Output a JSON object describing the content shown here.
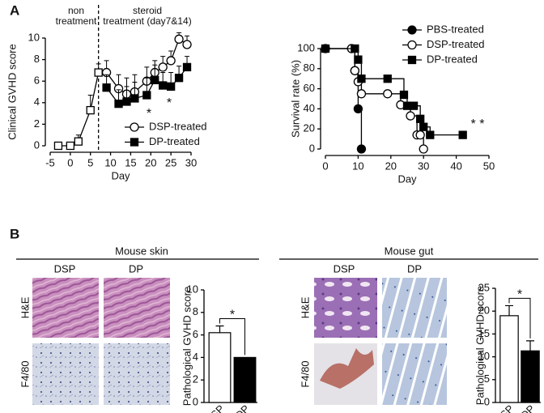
{
  "figure": {
    "panel_a": "A",
    "panel_b": "B"
  },
  "histology": [
    {
      "title": "Mouse skin",
      "columns": [
        "DSP",
        "DP"
      ],
      "rows": [
        "H&E",
        "F4/80"
      ]
    },
    {
      "title": "Mouse gut",
      "columns": [
        "DSP",
        "DP"
      ],
      "rows": [
        "H&E",
        "F4/80"
      ]
    }
  ],
  "chart_data": [
    {
      "type": "line",
      "y_label": "Clinical GVHD score",
      "x_label": "Day",
      "xlim": [
        -5,
        30
      ],
      "xticks": [
        -5,
        0,
        5,
        10,
        15,
        20,
        25,
        30
      ],
      "ylim": [
        0,
        10
      ],
      "yticks": [
        0,
        2,
        4,
        6,
        8,
        10
      ],
      "treatment_start_day": 7,
      "legend": "lower right",
      "annotations": {
        "before": [
          "non",
          "treatment"
        ],
        "after": [
          "steroid",
          "treatment (day7&14)"
        ],
        "stars": [
          "*",
          "*"
        ]
      },
      "series": [
        {
          "marker": "open-square",
          "color": "#000000",
          "x": [
            -3,
            0,
            2,
            5,
            7
          ],
          "values": [
            0,
            0,
            0.4,
            3.3,
            6.8
          ],
          "errors": [
            null,
            null,
            0.6,
            1.4,
            0.8
          ]
        },
        {
          "name": "DSP-treated",
          "marker": "open-circle",
          "color": "#000000",
          "x": [
            9,
            12,
            14,
            16,
            19,
            21,
            23,
            25,
            27,
            29
          ],
          "values": [
            6.8,
            5.3,
            4.8,
            5.0,
            6.0,
            6.8,
            7.3,
            7.9,
            9.9,
            9.4
          ],
          "errors": [
            1.1,
            1.3,
            1.5,
            1.6,
            1.3,
            1.1,
            1.0,
            0.9,
            0.6,
            0.8
          ]
        },
        {
          "name": "DP-treated",
          "marker": "filled-square",
          "color": "#000000",
          "x": [
            9,
            12,
            14,
            16,
            19,
            21,
            23,
            25,
            27,
            29
          ],
          "values": [
            5.4,
            3.9,
            4.1,
            4.4,
            4.7,
            6.1,
            5.6,
            5.5,
            6.3,
            7.3
          ],
          "errors": [
            1.2,
            1.3,
            1.4,
            1.5,
            1.6,
            1.4,
            1.2,
            1.3,
            1.1,
            1.0
          ]
        }
      ]
    },
    {
      "type": "step",
      "y_label": "Survival rate (%)",
      "x_label": "Day",
      "xlim": [
        0,
        50
      ],
      "xticks": [
        0,
        10,
        20,
        30,
        40,
        50
      ],
      "ylim": [
        0,
        100
      ],
      "yticks": [
        0,
        20,
        40,
        60,
        80,
        100
      ],
      "legend": "upper right",
      "annotations": {
        "stars": [
          "* *"
        ]
      },
      "series": [
        {
          "name": "PBS-treated",
          "marker": "filled-circle",
          "color": "#000000",
          "x": [
            0,
            8,
            9,
            10,
            11
          ],
          "values": [
            100,
            100,
            78,
            40,
            0
          ]
        },
        {
          "name": "DSP-treated",
          "marker": "open-circle",
          "color": "#000000",
          "x": [
            0,
            8,
            9,
            10,
            11,
            19,
            23,
            26,
            28,
            29,
            30
          ],
          "values": [
            100,
            100,
            78,
            67,
            55,
            55,
            44,
            33,
            14,
            14,
            0
          ]
        },
        {
          "name": "DP-treated",
          "marker": "filled-square",
          "color": "#000000",
          "x": [
            0,
            9,
            10,
            11,
            19,
            24,
            25,
            27,
            29,
            30,
            32,
            42
          ],
          "values": [
            100,
            100,
            89,
            70,
            70,
            54,
            43,
            43,
            30,
            22,
            14,
            14
          ]
        }
      ]
    },
    {
      "type": "bar",
      "y_label": "Pathological GVHD score",
      "categories": [
        "DSP",
        "DP"
      ],
      "values": [
        6.2,
        4.0
      ],
      "errors": [
        0.6,
        null
      ],
      "colors": [
        "#ffffff",
        "#000000"
      ],
      "ylim": [
        0,
        10
      ],
      "yticks": [
        0,
        2,
        4,
        6,
        8,
        10
      ],
      "significance": "*"
    },
    {
      "type": "bar",
      "y_label": "Pathological GVHD score",
      "categories": [
        "DSP",
        "DP"
      ],
      "values": [
        19,
        11.3
      ],
      "errors": [
        2.2,
        2.2
      ],
      "colors": [
        "#ffffff",
        "#000000"
      ],
      "ylim": [
        0,
        25
      ],
      "yticks": [
        0,
        5,
        10,
        15,
        20,
        25
      ],
      "significance": "*"
    }
  ]
}
